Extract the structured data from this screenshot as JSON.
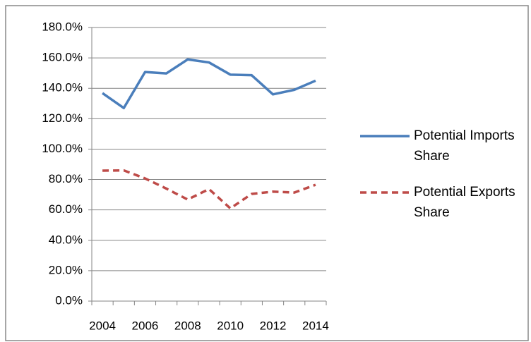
{
  "chart_data": {
    "type": "line",
    "categories": [
      "2004",
      null,
      "2006",
      null,
      "2008",
      null,
      "2010",
      null,
      "2012",
      null,
      "2014"
    ],
    "series": [
      {
        "name": "Potential Imports Share",
        "color": "#4a7ebb",
        "dash": "solid",
        "values": [
          136.8,
          127.0,
          150.7,
          149.8,
          159.0,
          157.0,
          149.0,
          148.6,
          136.0,
          139.0,
          145.0
        ]
      },
      {
        "name": "Potential Exports Share",
        "color": "#be4b48",
        "dash": "dashed",
        "values": [
          85.8,
          86.0,
          80.7,
          74.0,
          66.8,
          73.7,
          61.0,
          70.5,
          72.0,
          71.4,
          76.5
        ]
      }
    ],
    "ylim": [
      0,
      180
    ],
    "yticks": [
      {
        "value": 0,
        "label": "0.0%"
      },
      {
        "value": 20,
        "label": "20.0%"
      },
      {
        "value": 40,
        "label": "40.0%"
      },
      {
        "value": 60,
        "label": "60.0%"
      },
      {
        "value": 80,
        "label": "80.0%"
      },
      {
        "value": 100,
        "label": "100.0%"
      },
      {
        "value": 120,
        "label": "120.0%"
      },
      {
        "value": 140,
        "label": "140.0%"
      },
      {
        "value": 160,
        "label": "160.0%"
      },
      {
        "value": 180,
        "label": "180.0%"
      }
    ],
    "grid": true,
    "legend": "right"
  }
}
